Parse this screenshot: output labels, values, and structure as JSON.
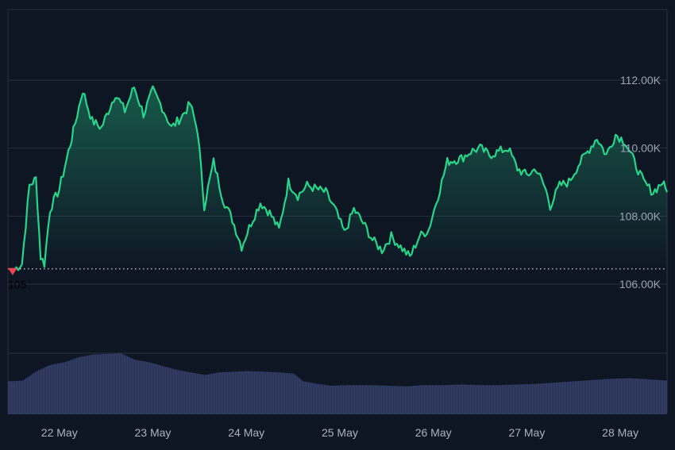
{
  "chart_data": {
    "type": "area",
    "ylim": [
      105.0,
      113.0
    ],
    "y_ticks": [
      {
        "value": 112.0,
        "label": "112.00K"
      },
      {
        "value": 110.0,
        "label": "110.00K"
      },
      {
        "value": 108.0,
        "label": "108.00K"
      },
      {
        "value": 106.0,
        "label": "106.00K"
      }
    ],
    "x_ticks": [
      {
        "t": 1.0,
        "label": "22 May"
      },
      {
        "t": 2.0,
        "label": "23 May"
      },
      {
        "t": 3.0,
        "label": "24 May"
      },
      {
        "t": 4.0,
        "label": "25 May"
      },
      {
        "t": 5.0,
        "label": "26 May"
      },
      {
        "t": 6.0,
        "label": "27 May"
      },
      {
        "t": 7.0,
        "label": "28 May"
      }
    ],
    "xlim": [
      0.45,
      7.5
    ],
    "reference_line": {
      "value": 106.45,
      "style": "dotted"
    },
    "marker": {
      "t": 0.5,
      "value": 106.45,
      "label": "105"
    },
    "grid": true,
    "colors": {
      "price_line": "#26d68a",
      "area_top": "#1f8f68",
      "volume": "#343e68",
      "marker": "#f0444c",
      "grid": "#263041",
      "background": "#0e1624"
    },
    "series": [
      {
        "values": [
          [
            0.5,
            106.4
          ],
          [
            0.6,
            106.6
          ],
          [
            0.68,
            108.9
          ],
          [
            0.75,
            109.1
          ],
          [
            0.8,
            106.8
          ],
          [
            0.84,
            106.6
          ],
          [
            0.9,
            108.2
          ],
          [
            1.0,
            108.8
          ],
          [
            1.08,
            109.7
          ],
          [
            1.15,
            110.5
          ],
          [
            1.25,
            111.7
          ],
          [
            1.35,
            110.8
          ],
          [
            1.45,
            110.6
          ],
          [
            1.6,
            111.6
          ],
          [
            1.7,
            111.1
          ],
          [
            1.8,
            111.8
          ],
          [
            1.9,
            111.0
          ],
          [
            2.0,
            111.7
          ],
          [
            2.1,
            111.2
          ],
          [
            2.2,
            110.6
          ],
          [
            2.3,
            110.9
          ],
          [
            2.4,
            111.3
          ],
          [
            2.48,
            110.5
          ],
          [
            2.55,
            108.3
          ],
          [
            2.65,
            109.6
          ],
          [
            2.75,
            108.5
          ],
          [
            2.85,
            107.9
          ],
          [
            2.95,
            107.1
          ],
          [
            3.05,
            107.8
          ],
          [
            3.15,
            108.4
          ],
          [
            3.25,
            108.1
          ],
          [
            3.35,
            107.6
          ],
          [
            3.45,
            109.0
          ],
          [
            3.55,
            108.6
          ],
          [
            3.65,
            108.9
          ],
          [
            3.75,
            108.8
          ],
          [
            3.85,
            108.7
          ],
          [
            3.95,
            108.2
          ],
          [
            4.05,
            107.5
          ],
          [
            4.15,
            108.2
          ],
          [
            4.25,
            107.8
          ],
          [
            4.35,
            107.3
          ],
          [
            4.45,
            107.0
          ],
          [
            4.55,
            107.4
          ],
          [
            4.65,
            107.1
          ],
          [
            4.75,
            106.8
          ],
          [
            4.85,
            107.4
          ],
          [
            4.95,
            107.6
          ],
          [
            5.05,
            108.6
          ],
          [
            5.15,
            109.6
          ],
          [
            5.3,
            109.7
          ],
          [
            5.4,
            109.9
          ],
          [
            5.5,
            110.0
          ],
          [
            5.6,
            109.8
          ],
          [
            5.7,
            109.9
          ],
          [
            5.8,
            110.0
          ],
          [
            5.9,
            109.4
          ],
          [
            6.0,
            109.2
          ],
          [
            6.1,
            109.4
          ],
          [
            6.2,
            108.8
          ],
          [
            6.25,
            108.3
          ],
          [
            6.35,
            108.9
          ],
          [
            6.45,
            109.0
          ],
          [
            6.55,
            109.5
          ],
          [
            6.65,
            109.9
          ],
          [
            6.75,
            110.3
          ],
          [
            6.85,
            109.8
          ],
          [
            6.95,
            110.4
          ],
          [
            7.05,
            110.2
          ],
          [
            7.15,
            109.6
          ],
          [
            7.25,
            109.0
          ],
          [
            7.35,
            108.7
          ],
          [
            7.45,
            109.0
          ],
          [
            7.5,
            108.7
          ]
        ]
      }
    ],
    "volume": [
      [
        0.45,
        0.52
      ],
      [
        0.6,
        0.53
      ],
      [
        0.75,
        0.68
      ],
      [
        0.9,
        0.78
      ],
      [
        1.05,
        0.82
      ],
      [
        1.2,
        0.9
      ],
      [
        1.35,
        0.94
      ],
      [
        1.5,
        0.95
      ],
      [
        1.65,
        0.96
      ],
      [
        1.8,
        0.86
      ],
      [
        1.95,
        0.82
      ],
      [
        2.1,
        0.76
      ],
      [
        2.25,
        0.7
      ],
      [
        2.4,
        0.66
      ],
      [
        2.55,
        0.62
      ],
      [
        2.7,
        0.66
      ],
      [
        2.85,
        0.67
      ],
      [
        3.0,
        0.68
      ],
      [
        3.2,
        0.67
      ],
      [
        3.35,
        0.66
      ],
      [
        3.5,
        0.64
      ],
      [
        3.6,
        0.52
      ],
      [
        3.75,
        0.48
      ],
      [
        3.9,
        0.45
      ],
      [
        4.1,
        0.46
      ],
      [
        4.3,
        0.46
      ],
      [
        4.5,
        0.45
      ],
      [
        4.7,
        0.44
      ],
      [
        4.9,
        0.46
      ],
      [
        5.1,
        0.46
      ],
      [
        5.3,
        0.47
      ],
      [
        5.5,
        0.46
      ],
      [
        5.7,
        0.46
      ],
      [
        5.9,
        0.47
      ],
      [
        6.1,
        0.48
      ],
      [
        6.3,
        0.5
      ],
      [
        6.5,
        0.52
      ],
      [
        6.7,
        0.54
      ],
      [
        6.9,
        0.56
      ],
      [
        7.1,
        0.57
      ],
      [
        7.3,
        0.55
      ],
      [
        7.5,
        0.53
      ]
    ]
  }
}
